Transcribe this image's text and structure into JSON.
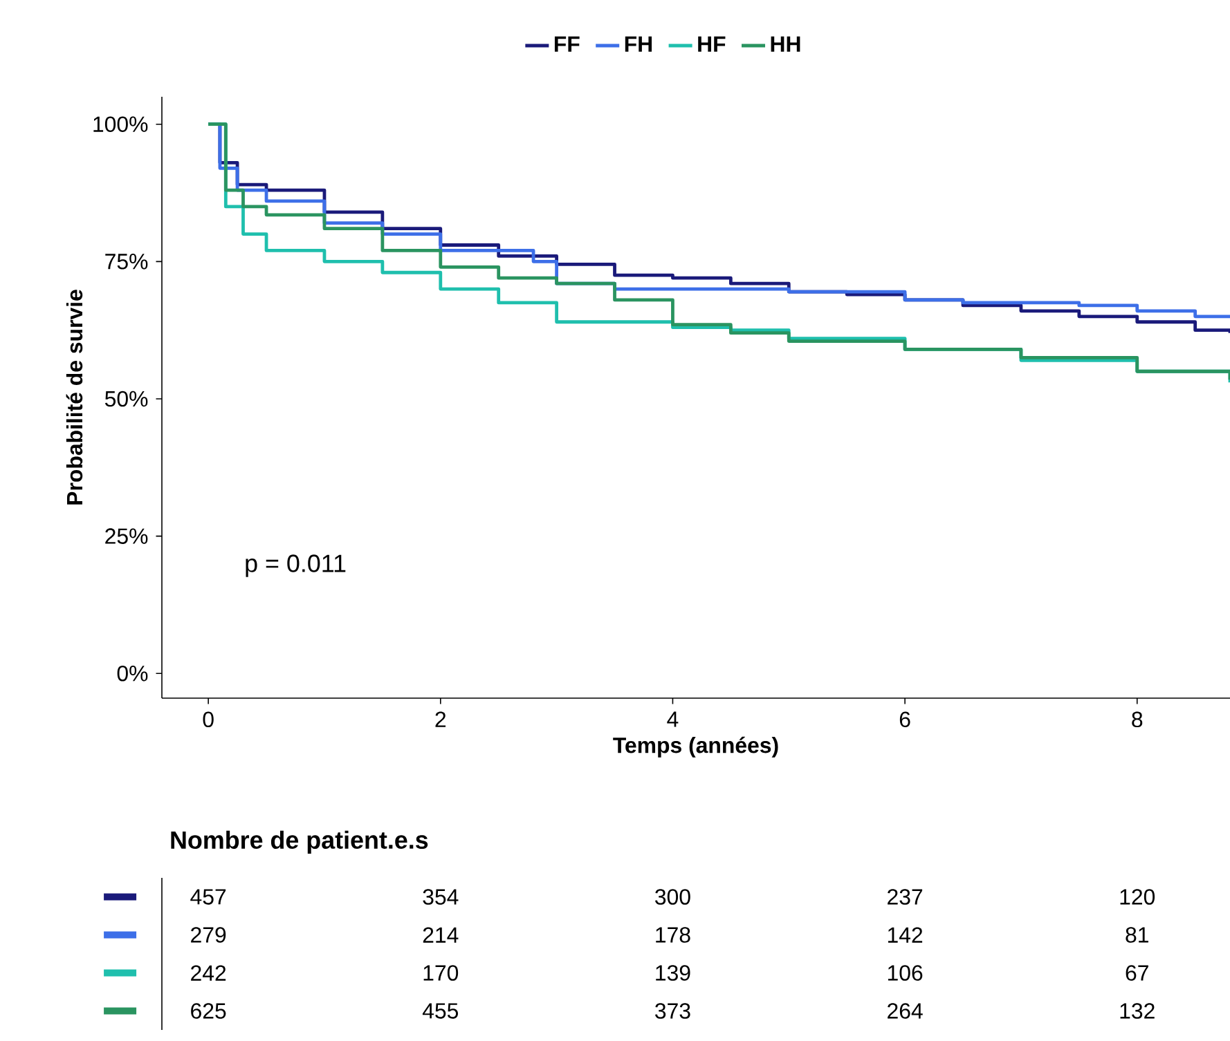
{
  "chart_data": [
    {
      "type": "step",
      "xlabel": "Temps (années)",
      "ylabel": "Probabilité de survie",
      "xlim": [
        -0.4,
        8.8
      ],
      "ylim": [
        -4.5,
        105
      ],
      "xticks": [
        0,
        2,
        4,
        6,
        8
      ],
      "yticks": [
        {
          "value": 0,
          "label": "0%"
        },
        {
          "value": 25,
          "label": "25%"
        },
        {
          "value": 50,
          "label": "50%"
        },
        {
          "value": 75,
          "label": "75%"
        },
        {
          "value": 100,
          "label": "100%"
        }
      ],
      "legend": "top",
      "annotations": [
        "p = 0.011"
      ],
      "series": [
        {
          "name": "FF",
          "color": "#1a1a7a",
          "x": [
            0,
            0.1,
            0.25,
            0.5,
            1,
            1.5,
            2,
            2.5,
            3,
            3.5,
            4,
            4.5,
            5,
            5.5,
            6,
            6.5,
            7,
            7.5,
            8,
            8.5,
            8.8
          ],
          "values": [
            100,
            93,
            89,
            88,
            84,
            81,
            78,
            76,
            74.5,
            72.5,
            72,
            71,
            69.5,
            69,
            68,
            67,
            66,
            65,
            64,
            62.5,
            62
          ]
        },
        {
          "name": "FH",
          "color": "#3d6fe8",
          "x": [
            0,
            0.1,
            0.25,
            0.5,
            1,
            1.5,
            2,
            2.5,
            2.8,
            3,
            3.5,
            4,
            5,
            6,
            6.5,
            7,
            7.5,
            8,
            8.5,
            8.8
          ],
          "values": [
            100,
            92,
            88,
            86,
            82,
            80,
            77,
            77,
            75,
            71,
            70,
            70,
            69.5,
            68,
            67.5,
            67.5,
            67,
            66,
            65,
            65
          ]
        },
        {
          "name": "HF",
          "color": "#1fbfad",
          "x": [
            0,
            0.15,
            0.3,
            0.5,
            1,
            1.5,
            2,
            2.5,
            3,
            3.5,
            4,
            4.5,
            5,
            6,
            7,
            8,
            8.8
          ],
          "values": [
            100,
            85,
            80,
            77,
            75,
            73,
            70,
            67.5,
            64,
            64,
            63,
            62.5,
            61,
            59,
            57,
            55,
            53
          ]
        },
        {
          "name": "HH",
          "color": "#2a9460",
          "x": [
            0,
            0.15,
            0.3,
            0.5,
            1,
            1.5,
            2,
            2.5,
            3,
            3.5,
            4,
            4.5,
            5,
            6,
            7,
            8,
            8.8
          ],
          "values": [
            100,
            88,
            85,
            83.5,
            81,
            77,
            74,
            72,
            71,
            68,
            63.5,
            62,
            60.5,
            59,
            57.5,
            55,
            53.5
          ]
        }
      ]
    },
    {
      "type": "other",
      "title": "Nombre de patient.e.s",
      "annotations": [
        "457",
        "354",
        "300",
        "237",
        "120",
        "279",
        "214",
        "178",
        "142",
        "81",
        "242",
        "170",
        "139",
        "106",
        "67",
        "625",
        "455",
        "373",
        "264",
        "132"
      ]
    }
  ]
}
